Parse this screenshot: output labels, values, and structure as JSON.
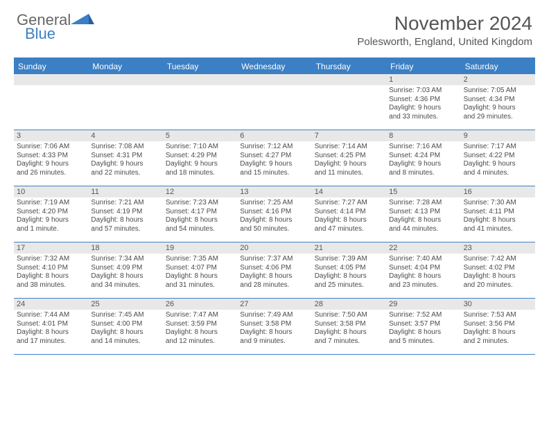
{
  "logo": {
    "text1": "General",
    "text2": "Blue"
  },
  "title": "November 2024",
  "location": "Polesworth, England, United Kingdom",
  "colors": {
    "accent": "#3b7fc4",
    "header_row_bg": "#e8e8e8",
    "text": "#4a4a4a",
    "title_text": "#555555"
  },
  "day_names": [
    "Sunday",
    "Monday",
    "Tuesday",
    "Wednesday",
    "Thursday",
    "Friday",
    "Saturday"
  ],
  "weeks": [
    [
      null,
      null,
      null,
      null,
      null,
      {
        "n": "1",
        "sr": "Sunrise: 7:03 AM",
        "ss": "Sunset: 4:36 PM",
        "d1": "Daylight: 9 hours",
        "d2": "and 33 minutes."
      },
      {
        "n": "2",
        "sr": "Sunrise: 7:05 AM",
        "ss": "Sunset: 4:34 PM",
        "d1": "Daylight: 9 hours",
        "d2": "and 29 minutes."
      }
    ],
    [
      {
        "n": "3",
        "sr": "Sunrise: 7:06 AM",
        "ss": "Sunset: 4:33 PM",
        "d1": "Daylight: 9 hours",
        "d2": "and 26 minutes."
      },
      {
        "n": "4",
        "sr": "Sunrise: 7:08 AM",
        "ss": "Sunset: 4:31 PM",
        "d1": "Daylight: 9 hours",
        "d2": "and 22 minutes."
      },
      {
        "n": "5",
        "sr": "Sunrise: 7:10 AM",
        "ss": "Sunset: 4:29 PM",
        "d1": "Daylight: 9 hours",
        "d2": "and 18 minutes."
      },
      {
        "n": "6",
        "sr": "Sunrise: 7:12 AM",
        "ss": "Sunset: 4:27 PM",
        "d1": "Daylight: 9 hours",
        "d2": "and 15 minutes."
      },
      {
        "n": "7",
        "sr": "Sunrise: 7:14 AM",
        "ss": "Sunset: 4:25 PM",
        "d1": "Daylight: 9 hours",
        "d2": "and 11 minutes."
      },
      {
        "n": "8",
        "sr": "Sunrise: 7:16 AM",
        "ss": "Sunset: 4:24 PM",
        "d1": "Daylight: 9 hours",
        "d2": "and 8 minutes."
      },
      {
        "n": "9",
        "sr": "Sunrise: 7:17 AM",
        "ss": "Sunset: 4:22 PM",
        "d1": "Daylight: 9 hours",
        "d2": "and 4 minutes."
      }
    ],
    [
      {
        "n": "10",
        "sr": "Sunrise: 7:19 AM",
        "ss": "Sunset: 4:20 PM",
        "d1": "Daylight: 9 hours",
        "d2": "and 1 minute."
      },
      {
        "n": "11",
        "sr": "Sunrise: 7:21 AM",
        "ss": "Sunset: 4:19 PM",
        "d1": "Daylight: 8 hours",
        "d2": "and 57 minutes."
      },
      {
        "n": "12",
        "sr": "Sunrise: 7:23 AM",
        "ss": "Sunset: 4:17 PM",
        "d1": "Daylight: 8 hours",
        "d2": "and 54 minutes."
      },
      {
        "n": "13",
        "sr": "Sunrise: 7:25 AM",
        "ss": "Sunset: 4:16 PM",
        "d1": "Daylight: 8 hours",
        "d2": "and 50 minutes."
      },
      {
        "n": "14",
        "sr": "Sunrise: 7:27 AM",
        "ss": "Sunset: 4:14 PM",
        "d1": "Daylight: 8 hours",
        "d2": "and 47 minutes."
      },
      {
        "n": "15",
        "sr": "Sunrise: 7:28 AM",
        "ss": "Sunset: 4:13 PM",
        "d1": "Daylight: 8 hours",
        "d2": "and 44 minutes."
      },
      {
        "n": "16",
        "sr": "Sunrise: 7:30 AM",
        "ss": "Sunset: 4:11 PM",
        "d1": "Daylight: 8 hours",
        "d2": "and 41 minutes."
      }
    ],
    [
      {
        "n": "17",
        "sr": "Sunrise: 7:32 AM",
        "ss": "Sunset: 4:10 PM",
        "d1": "Daylight: 8 hours",
        "d2": "and 38 minutes."
      },
      {
        "n": "18",
        "sr": "Sunrise: 7:34 AM",
        "ss": "Sunset: 4:09 PM",
        "d1": "Daylight: 8 hours",
        "d2": "and 34 minutes."
      },
      {
        "n": "19",
        "sr": "Sunrise: 7:35 AM",
        "ss": "Sunset: 4:07 PM",
        "d1": "Daylight: 8 hours",
        "d2": "and 31 minutes."
      },
      {
        "n": "20",
        "sr": "Sunrise: 7:37 AM",
        "ss": "Sunset: 4:06 PM",
        "d1": "Daylight: 8 hours",
        "d2": "and 28 minutes."
      },
      {
        "n": "21",
        "sr": "Sunrise: 7:39 AM",
        "ss": "Sunset: 4:05 PM",
        "d1": "Daylight: 8 hours",
        "d2": "and 25 minutes."
      },
      {
        "n": "22",
        "sr": "Sunrise: 7:40 AM",
        "ss": "Sunset: 4:04 PM",
        "d1": "Daylight: 8 hours",
        "d2": "and 23 minutes."
      },
      {
        "n": "23",
        "sr": "Sunrise: 7:42 AM",
        "ss": "Sunset: 4:02 PM",
        "d1": "Daylight: 8 hours",
        "d2": "and 20 minutes."
      }
    ],
    [
      {
        "n": "24",
        "sr": "Sunrise: 7:44 AM",
        "ss": "Sunset: 4:01 PM",
        "d1": "Daylight: 8 hours",
        "d2": "and 17 minutes."
      },
      {
        "n": "25",
        "sr": "Sunrise: 7:45 AM",
        "ss": "Sunset: 4:00 PM",
        "d1": "Daylight: 8 hours",
        "d2": "and 14 minutes."
      },
      {
        "n": "26",
        "sr": "Sunrise: 7:47 AM",
        "ss": "Sunset: 3:59 PM",
        "d1": "Daylight: 8 hours",
        "d2": "and 12 minutes."
      },
      {
        "n": "27",
        "sr": "Sunrise: 7:49 AM",
        "ss": "Sunset: 3:58 PM",
        "d1": "Daylight: 8 hours",
        "d2": "and 9 minutes."
      },
      {
        "n": "28",
        "sr": "Sunrise: 7:50 AM",
        "ss": "Sunset: 3:58 PM",
        "d1": "Daylight: 8 hours",
        "d2": "and 7 minutes."
      },
      {
        "n": "29",
        "sr": "Sunrise: 7:52 AM",
        "ss": "Sunset: 3:57 PM",
        "d1": "Daylight: 8 hours",
        "d2": "and 5 minutes."
      },
      {
        "n": "30",
        "sr": "Sunrise: 7:53 AM",
        "ss": "Sunset: 3:56 PM",
        "d1": "Daylight: 8 hours",
        "d2": "and 2 minutes."
      }
    ]
  ]
}
